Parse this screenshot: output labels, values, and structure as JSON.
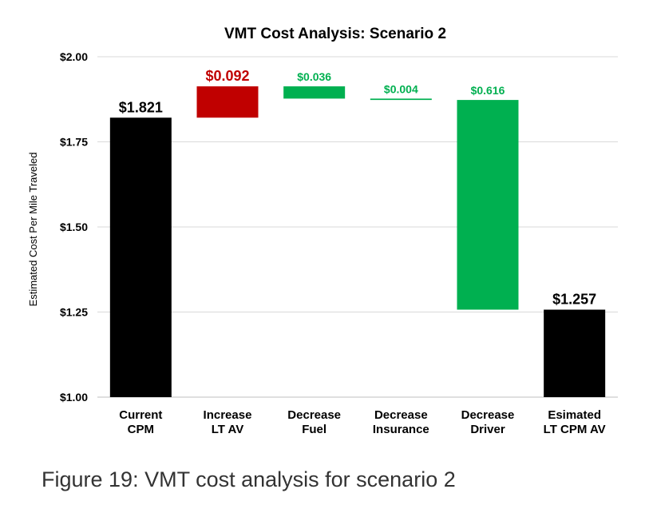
{
  "chart_data": {
    "type": "bar",
    "subtype": "waterfall",
    "title": "VMT Cost Analysis: Scenario 2",
    "ylabel": "Estimated Cost Per Mile Traveled",
    "xlabel": "",
    "ylim": [
      1.0,
      2.0
    ],
    "yticks": [
      "$1.00",
      "$1.25",
      "$1.50",
      "$1.75",
      "$2.00"
    ],
    "ytick_values": [
      1.0,
      1.25,
      1.5,
      1.75,
      2.0
    ],
    "grid": true,
    "legend": "none",
    "categories": [
      [
        "Current",
        "CPM"
      ],
      [
        "Increase",
        "LT AV"
      ],
      [
        "Decrease",
        "Fuel"
      ],
      [
        "Decrease",
        "Insurance"
      ],
      [
        "Decrease",
        "Driver"
      ],
      [
        "Esimated",
        "LT CPM AV"
      ]
    ],
    "bars": [
      {
        "kind": "total",
        "start": 1.0,
        "end": 1.821,
        "label": "$1.821",
        "color": "#000000"
      },
      {
        "kind": "increase",
        "start": 1.821,
        "end": 1.913,
        "label": "$0.092",
        "color": "#c00000"
      },
      {
        "kind": "decrease",
        "start": 1.913,
        "end": 1.877,
        "label": "$0.036",
        "color": "#00b050"
      },
      {
        "kind": "decrease",
        "start": 1.877,
        "end": 1.873,
        "label": "$0.004",
        "color": "#00b050"
      },
      {
        "kind": "decrease",
        "start": 1.873,
        "end": 1.257,
        "label": "$0.616",
        "color": "#00b050"
      },
      {
        "kind": "total",
        "start": 1.0,
        "end": 1.257,
        "label": "$1.257",
        "color": "#000000"
      }
    ]
  },
  "caption": "Figure 19: VMT cost analysis for scenario 2"
}
